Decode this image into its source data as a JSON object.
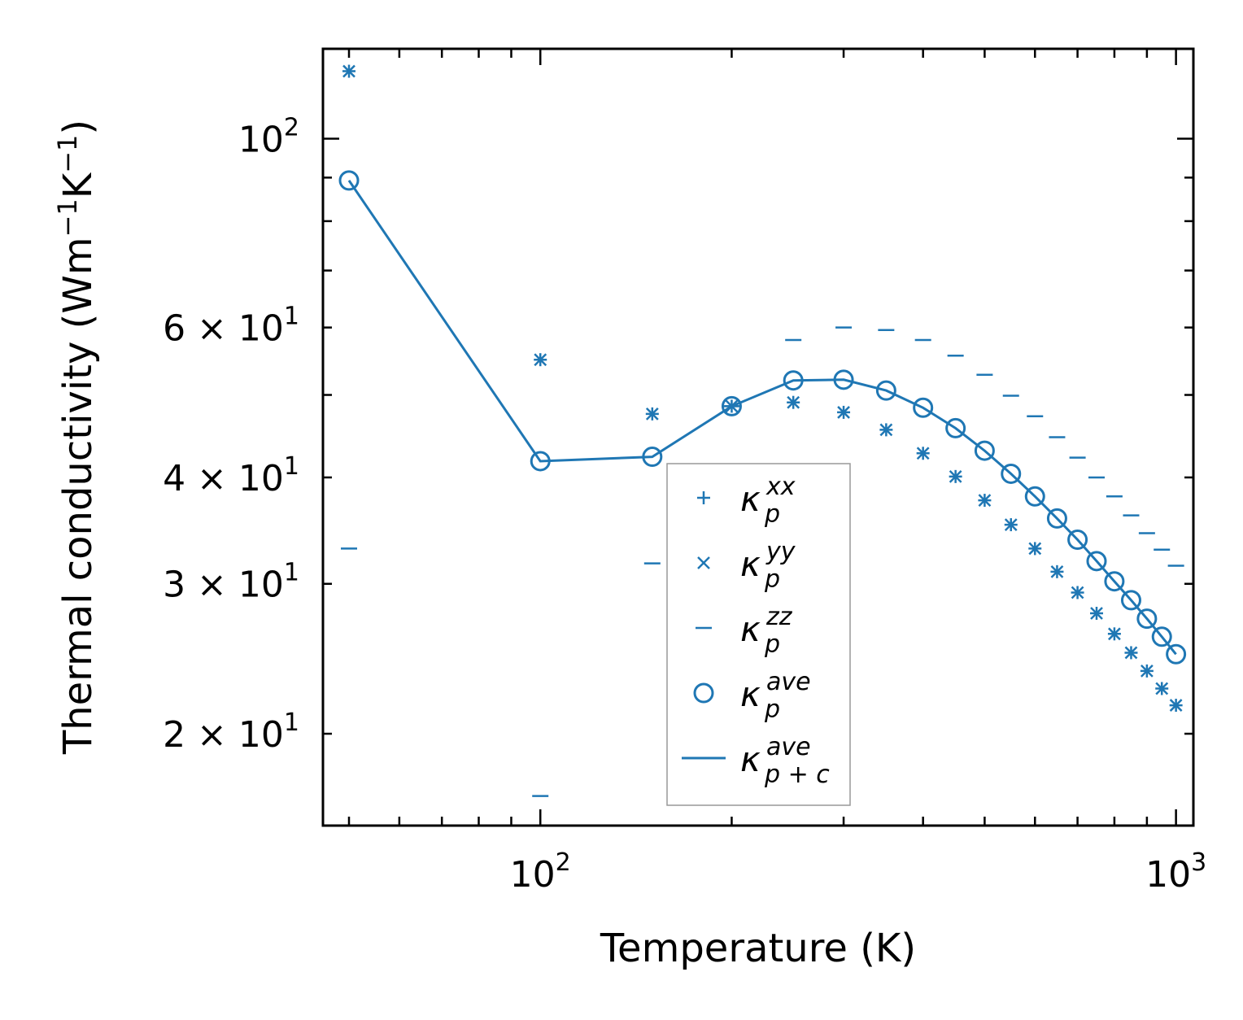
{
  "chart_data": {
    "type": "scatter",
    "xlabel": "Temperature (K)",
    "ylabel": "Thermal conductivity (Wm",
    "ylabel_exp1": "−1",
    "ylabel_mid": "K",
    "ylabel_exp2": "−1",
    "ylabel_end": ")",
    "xscale": "log",
    "yscale": "log",
    "xlim": [
      45.5,
      1065
    ],
    "ylim": [
      15.6,
      127.5
    ],
    "x_ticks": [
      {
        "value": 100,
        "base": "10",
        "exp": "2"
      },
      {
        "value": 1000,
        "base": "10",
        "exp": "3"
      }
    ],
    "y_ticks": [
      {
        "value": 100,
        "mantissa": "",
        "base": "10",
        "exp": "2"
      },
      {
        "value": 60,
        "mantissa": "6 × ",
        "base": "10",
        "exp": "1"
      },
      {
        "value": 40,
        "mantissa": "4 × ",
        "base": "10",
        "exp": "1"
      },
      {
        "value": 30,
        "mantissa": "3 × ",
        "base": "10",
        "exp": "1"
      },
      {
        "value": 20,
        "mantissa": "2 × ",
        "base": "10",
        "exp": "1"
      }
    ],
    "color": "#1f77b4",
    "legend_position": "lower-center",
    "x": [
      50,
      100,
      150,
      200,
      250,
      300,
      350,
      400,
      450,
      500,
      550,
      600,
      650,
      700,
      750,
      800,
      850,
      900,
      950,
      1000
    ],
    "series": [
      {
        "name": "κ",
        "sup": "xx",
        "sub": "p",
        "marker": "plus",
        "values": [
          120,
          55,
          47.5,
          48.5,
          49,
          47.7,
          45.5,
          42.7,
          40.1,
          37.6,
          35.2,
          33.0,
          31.0,
          29.3,
          27.7,
          26.2,
          24.9,
          23.7,
          22.6,
          21.6
        ]
      },
      {
        "name": "κ",
        "sup": "yy",
        "sub": "p",
        "marker": "x",
        "values": [
          120,
          55,
          47.5,
          48.5,
          49,
          47.7,
          45.5,
          42.7,
          40.1,
          37.6,
          35.2,
          33.0,
          31.0,
          29.3,
          27.7,
          26.2,
          24.9,
          23.7,
          22.6,
          21.6
        ]
      },
      {
        "name": "κ",
        "sup": "zz",
        "sub": "p",
        "marker": "hline",
        "values": [
          33,
          16.9,
          31.7,
          48.5,
          58.0,
          60.0,
          59.6,
          58.0,
          55.6,
          52.8,
          49.9,
          47.2,
          44.6,
          42.2,
          40.0,
          38.0,
          36.1,
          34.4,
          32.9,
          31.5
        ]
      },
      {
        "name": "κ",
        "sup": "ave",
        "sub": "p",
        "marker": "circle",
        "values": [
          89.3,
          41.8,
          42.3,
          48.5,
          52.0,
          52.1,
          50.6,
          48.3,
          45.7,
          43.0,
          40.4,
          38.0,
          35.8,
          33.8,
          31.9,
          30.2,
          28.7,
          27.3,
          26.0,
          24.8
        ]
      },
      {
        "name": "κ",
        "sup": "ave",
        "sub": "p + c",
        "marker": "line",
        "values": [
          89.3,
          41.8,
          42.3,
          48.5,
          52.0,
          52.1,
          50.6,
          48.3,
          45.7,
          43.0,
          40.4,
          38.0,
          35.8,
          33.8,
          31.9,
          30.2,
          28.7,
          27.3,
          26.0,
          24.8
        ]
      }
    ]
  }
}
